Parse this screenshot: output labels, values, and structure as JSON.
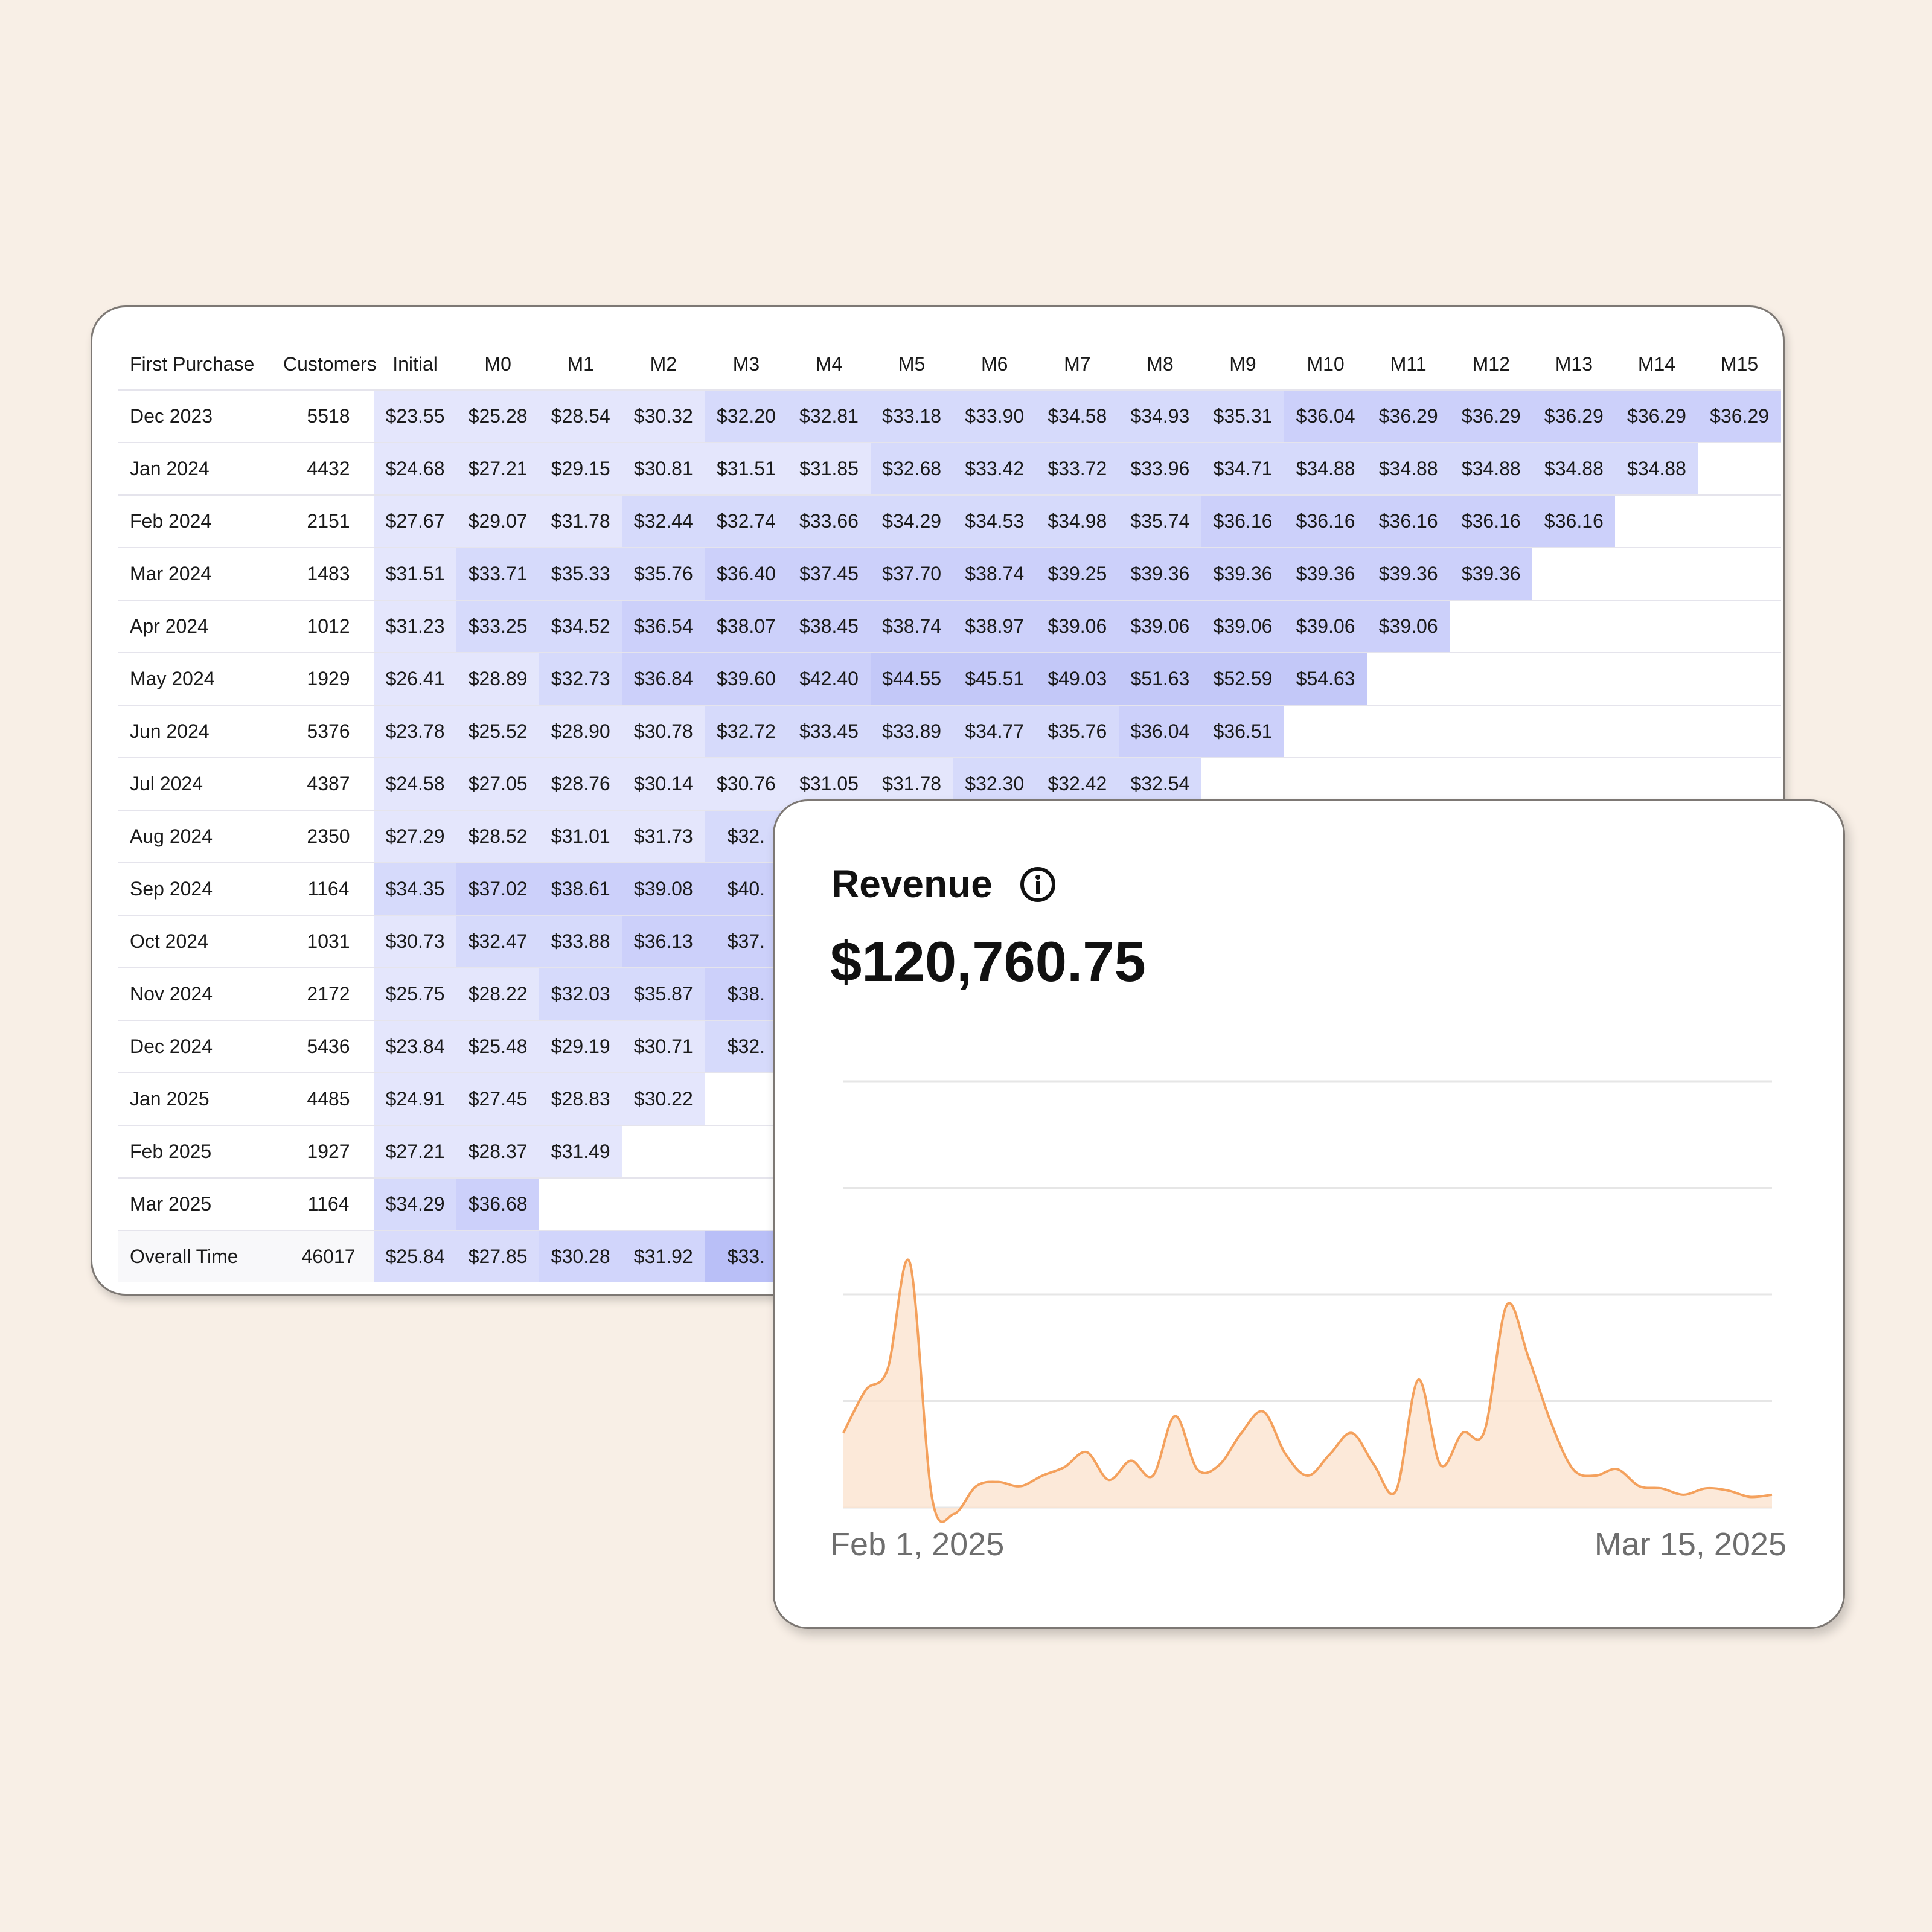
{
  "cohort_table": {
    "columns": [
      "First Purchase",
      "Customers",
      "Initial",
      "M0",
      "M1",
      "M2",
      "M3",
      "M4",
      "M5",
      "M6",
      "M7",
      "M8",
      "M9",
      "M10",
      "M11",
      "M12",
      "M13",
      "M14",
      "M15"
    ],
    "rows": [
      {
        "label": "Dec 2023",
        "customers": "5518",
        "values": [
          "$23.55",
          "$25.28",
          "$28.54",
          "$30.32",
          "$32.20",
          "$32.81",
          "$33.18",
          "$33.90",
          "$34.58",
          "$34.93",
          "$35.31",
          "$36.04",
          "$36.29",
          "$36.29",
          "$36.29",
          "$36.29",
          "$36.29"
        ]
      },
      {
        "label": "Jan 2024",
        "customers": "4432",
        "values": [
          "$24.68",
          "$27.21",
          "$29.15",
          "$30.81",
          "$31.51",
          "$31.85",
          "$32.68",
          "$33.42",
          "$33.72",
          "$33.96",
          "$34.71",
          "$34.88",
          "$34.88",
          "$34.88",
          "$34.88",
          "$34.88"
        ]
      },
      {
        "label": "Feb 2024",
        "customers": "2151",
        "values": [
          "$27.67",
          "$29.07",
          "$31.78",
          "$32.44",
          "$32.74",
          "$33.66",
          "$34.29",
          "$34.53",
          "$34.98",
          "$35.74",
          "$36.16",
          "$36.16",
          "$36.16",
          "$36.16",
          "$36.16"
        ]
      },
      {
        "label": "Mar 2024",
        "customers": "1483",
        "values": [
          "$31.51",
          "$33.71",
          "$35.33",
          "$35.76",
          "$36.40",
          "$37.45",
          "$37.70",
          "$38.74",
          "$39.25",
          "$39.36",
          "$39.36",
          "$39.36",
          "$39.36",
          "$39.36"
        ]
      },
      {
        "label": "Apr 2024",
        "customers": "1012",
        "values": [
          "$31.23",
          "$33.25",
          "$34.52",
          "$36.54",
          "$38.07",
          "$38.45",
          "$38.74",
          "$38.97",
          "$39.06",
          "$39.06",
          "$39.06",
          "$39.06",
          "$39.06"
        ]
      },
      {
        "label": "May 2024",
        "customers": "1929",
        "values": [
          "$26.41",
          "$28.89",
          "$32.73",
          "$36.84",
          "$39.60",
          "$42.40",
          "$44.55",
          "$45.51",
          "$49.03",
          "$51.63",
          "$52.59",
          "$54.63"
        ]
      },
      {
        "label": "Jun 2024",
        "customers": "5376",
        "values": [
          "$23.78",
          "$25.52",
          "$28.90",
          "$30.78",
          "$32.72",
          "$33.45",
          "$33.89",
          "$34.77",
          "$35.76",
          "$36.04",
          "$36.51"
        ]
      },
      {
        "label": "Jul 2024",
        "customers": "4387",
        "values": [
          "$24.58",
          "$27.05",
          "$28.76",
          "$30.14",
          "$30.76",
          "$31.05",
          "$31.78",
          "$32.30",
          "$32.42",
          "$32.54"
        ]
      },
      {
        "label": "Aug 2024",
        "customers": "2350",
        "values": [
          "$27.29",
          "$28.52",
          "$31.01",
          "$31.73",
          "$32.",
          "",
          "",
          "",
          ""
        ]
      },
      {
        "label": "Sep 2024",
        "customers": "1164",
        "values": [
          "$34.35",
          "$37.02",
          "$38.61",
          "$39.08",
          "$40.",
          "",
          "",
          ""
        ]
      },
      {
        "label": "Oct 2024",
        "customers": "1031",
        "values": [
          "$30.73",
          "$32.47",
          "$33.88",
          "$36.13",
          "$37.",
          "",
          ""
        ]
      },
      {
        "label": "Nov 2024",
        "customers": "2172",
        "values": [
          "$25.75",
          "$28.22",
          "$32.03",
          "$35.87",
          "$38.",
          ""
        ]
      },
      {
        "label": "Dec 2024",
        "customers": "5436",
        "values": [
          "$23.84",
          "$25.48",
          "$29.19",
          "$30.71",
          "$32."
        ]
      },
      {
        "label": "Jan 2025",
        "customers": "4485",
        "values": [
          "$24.91",
          "$27.45",
          "$28.83",
          "$30.22"
        ]
      },
      {
        "label": "Feb 2025",
        "customers": "1927",
        "values": [
          "$27.21",
          "$28.37",
          "$31.49"
        ]
      },
      {
        "label": "Mar 2025",
        "customers": "1164",
        "values": [
          "$34.29",
          "$36.68"
        ]
      }
    ],
    "total": {
      "label": "Overall Time",
      "customers": "46017",
      "values": [
        "$25.84",
        "$27.85",
        "$30.28",
        "$31.92",
        "$33."
      ]
    }
  },
  "revenue_card": {
    "title": "Revenue",
    "info_icon": "info-icon",
    "value": "$120,760.75",
    "x_start_label": "Feb 1, 2025",
    "x_end_label": "Mar 15, 2025",
    "line_color": "#f4a15d",
    "fill_color": "#fbe3cf"
  },
  "chart_data": {
    "type": "area",
    "title": "Revenue",
    "xlabel": "",
    "ylabel": "",
    "x": [
      "2025-02-01",
      "2025-02-02",
      "2025-02-03",
      "2025-02-04",
      "2025-02-05",
      "2025-02-06",
      "2025-02-07",
      "2025-02-08",
      "2025-02-09",
      "2025-02-10",
      "2025-02-11",
      "2025-02-12",
      "2025-02-13",
      "2025-02-14",
      "2025-02-15",
      "2025-02-16",
      "2025-02-17",
      "2025-02-18",
      "2025-02-19",
      "2025-02-20",
      "2025-02-21",
      "2025-02-22",
      "2025-02-23",
      "2025-02-24",
      "2025-02-25",
      "2025-02-26",
      "2025-02-27",
      "2025-02-28",
      "2025-03-01",
      "2025-03-02",
      "2025-03-03",
      "2025-03-04",
      "2025-03-05",
      "2025-03-06",
      "2025-03-07",
      "2025-03-08",
      "2025-03-09",
      "2025-03-10",
      "2025-03-11",
      "2025-03-12",
      "2025-03-13",
      "2025-03-14",
      "2025-03-15"
    ],
    "values": [
      35,
      55,
      65,
      115,
      5,
      -3,
      10,
      12,
      10,
      15,
      19,
      26,
      13,
      22,
      15,
      43,
      18,
      20,
      35,
      45,
      25,
      15,
      25,
      35,
      20,
      8,
      60,
      20,
      35,
      36,
      95,
      70,
      40,
      18,
      15,
      18,
      10,
      9,
      6,
      9,
      8,
      5,
      6
    ],
    "grid": true,
    "ylim": [
      0,
      200
    ]
  }
}
